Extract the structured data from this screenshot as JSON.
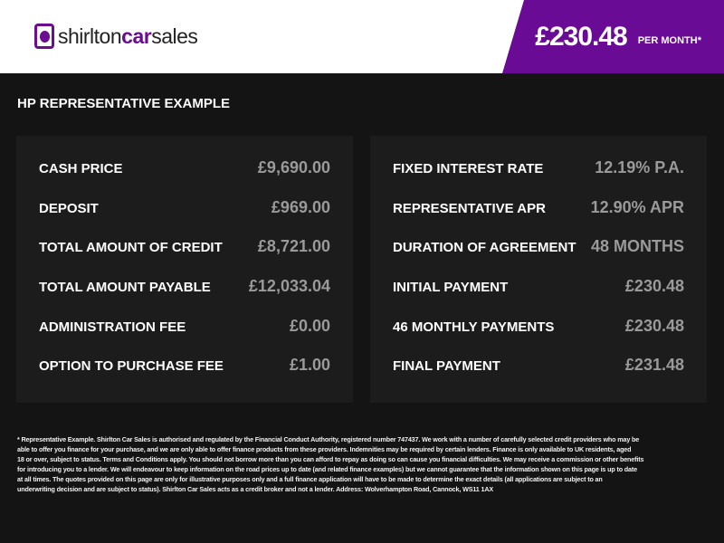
{
  "header": {
    "logo_prefix": "shirlton",
    "logo_bold": "car",
    "logo_suffix": "sales",
    "price": "£230.48",
    "per_month": "PER MONTH*",
    "accent": "#6a0b95"
  },
  "title": "HP REPRESENTATIVE EXAMPLE",
  "left": [
    {
      "label": "CASH PRICE",
      "value": "£9,690.00"
    },
    {
      "label": "DEPOSIT",
      "value": "£969.00"
    },
    {
      "label": "TOTAL AMOUNT OF CREDIT",
      "value": "£8,721.00"
    },
    {
      "label": "TOTAL AMOUNT PAYABLE",
      "value": "£12,033.04"
    },
    {
      "label": "ADMINISTRATION FEE",
      "value": "£0.00"
    },
    {
      "label": "OPTION TO PURCHASE FEE",
      "value": "£1.00"
    }
  ],
  "right": [
    {
      "label": "FIXED INTEREST RATE",
      "value": "12.19% P.A."
    },
    {
      "label": "REPRESENTATIVE APR",
      "value": "12.90% APR"
    },
    {
      "label": "DURATION OF AGREEMENT",
      "value": "48 MONTHS"
    },
    {
      "label": "INITIAL PAYMENT",
      "value": "£230.48"
    },
    {
      "label": "46 MONTHLY PAYMENTS",
      "value": "£230.48"
    },
    {
      "label": "FINAL PAYMENT",
      "value": "£231.48"
    }
  ],
  "disclaimer": [
    "* Representative Example. Shirlton Car Sales is authorised and regulated by the Financial Conduct Authority, registered number 747437. We work with a number of carefully selected credit providers who may be",
    "able to offer you finance for your purchase, and we are only able to offer finance products from these providers. Indemnities may be required by certain lenders. Finance is only available to UK residents, aged",
    "18 or over, subject to status. Terms and Conditions apply. You should not borrow more than you can afford to repay as doing so can cause you financial difficulties. We may receive a commission or other benefits",
    "for introducing you to a lender. We will endeavour to keep information on the road prices up to date (and related finance examples) but we cannot guarantee that the information shown on this page is up to date",
    "at all times. The quotes provided on this page are only for illustrative purposes only and a full finance application will have to be made to determine the exact details (all applications are subject to an",
    "underwriting decision and are subject to status). Shirlton Car Sales acts as a credit broker and not a lender. Address: Wolverhampton Road, Cannock, WS11 1AX"
  ]
}
